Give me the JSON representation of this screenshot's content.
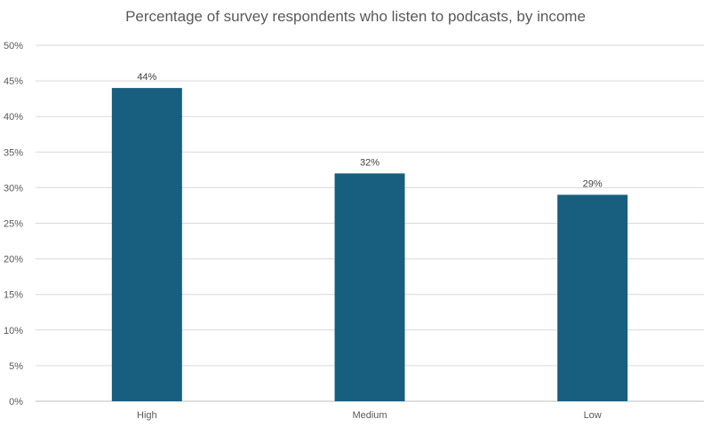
{
  "chart_data": {
    "type": "bar",
    "title": "Percentage of survey respondents who listen to podcasts, by income",
    "categories": [
      "High",
      "Medium",
      "Low"
    ],
    "values": [
      44,
      32,
      29
    ],
    "data_labels": [
      "44%",
      "32%",
      "29%"
    ],
    "xlabel": "",
    "ylabel": "",
    "ylim": [
      0,
      50
    ],
    "yticks": [
      0,
      5,
      10,
      15,
      20,
      25,
      30,
      35,
      40,
      45,
      50
    ],
    "ytick_labels": [
      "0%",
      "5%",
      "10%",
      "15%",
      "20%",
      "25%",
      "30%",
      "35%",
      "40%",
      "45%",
      "50%"
    ],
    "grid": true,
    "legend": "none",
    "bar_color": "#175e7f"
  }
}
